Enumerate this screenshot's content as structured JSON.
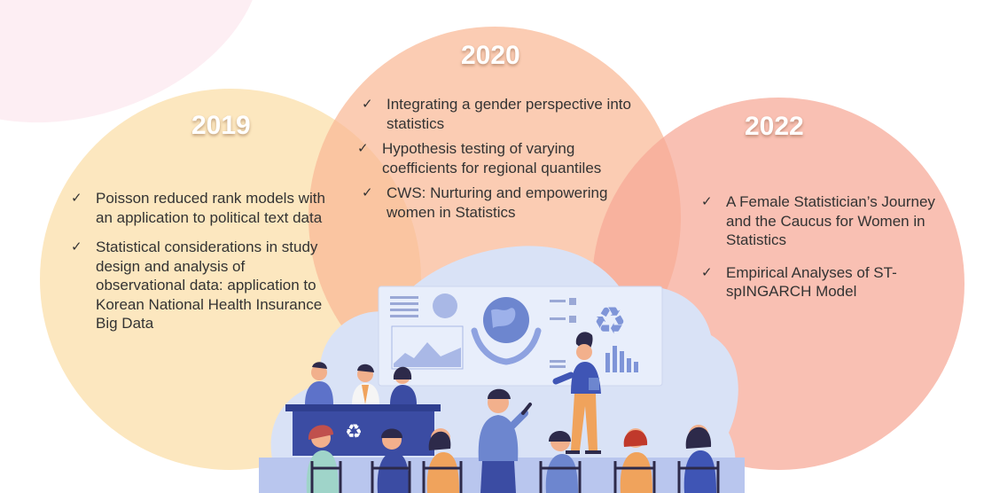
{
  "colors": {
    "circle_2019": "#fbdfaa",
    "circle_2020": "#f9b996",
    "circle_2022": "#f7a896",
    "illustration_bg": "#d9e2f6",
    "floor": "#b9c6ee",
    "screen": "#e8eefb"
  },
  "icons": [
    "check-icon",
    "recycle-icon",
    "globe-icon",
    "microphone-icon"
  ],
  "sections": [
    {
      "year": "2019",
      "items": [
        "Poisson reduced rank models with an application to political text data",
        "Statistical considerations in study design and analysis of observational data: application to Korean National Health Insurance Big Data"
      ]
    },
    {
      "year": "2020",
      "items": [
        "Integrating a gender perspective into statistics",
        "Hypothesis testing of varying coefficients for regional quantiles",
        "CWS: Nurturing and empowering women in Statistics"
      ]
    },
    {
      "year": "2022",
      "items": [
        "A Female Statistician’s Journey and the Caucus for Women in Statistics",
        "Empirical Analyses of ST-spINGARCH Model"
      ]
    }
  ]
}
